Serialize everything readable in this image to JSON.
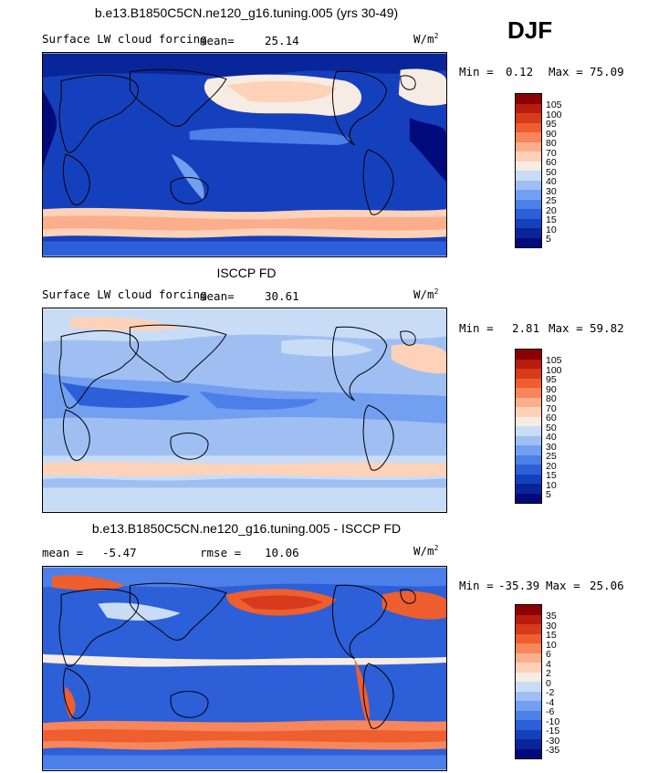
{
  "season": "DJF",
  "panels": [
    {
      "title": "b.e13.B1850C5CN.ne120_g16.tuning.005 (yrs 30-49)",
      "field": "Surface LW cloud forcing",
      "mean_label": "mean=",
      "mean": "25.14",
      "units_base": "W/m",
      "units_exp": "2",
      "min_label": "Min =",
      "min": "0.12",
      "max_label": "Max =",
      "max": "75.09",
      "levels": [
        "105",
        "100",
        "95",
        "90",
        "80",
        "70",
        "60",
        "50",
        "40",
        "30",
        "25",
        "20",
        "15",
        "10",
        "5"
      ],
      "colors": [
        "#8b0000",
        "#b71c0c",
        "#d73a1c",
        "#ee5e2e",
        "#f7865a",
        "#fbae8c",
        "#fdd2b8",
        "#f6ece4",
        "#c9dcf6",
        "#9fbff2",
        "#729ff0",
        "#4d7fe8",
        "#2c5fd8",
        "#1540bd",
        "#082699",
        "#000a7a"
      ]
    },
    {
      "title": "ISCCP FD",
      "field": "Surface LW cloud forcing",
      "mean_label": "mean=",
      "mean": "30.61",
      "units_base": "W/m",
      "units_exp": "2",
      "min_label": "Min =",
      "min": "2.81",
      "max_label": "Max =",
      "max": "59.82",
      "levels": [
        "105",
        "100",
        "95",
        "90",
        "80",
        "70",
        "60",
        "50",
        "40",
        "30",
        "25",
        "20",
        "15",
        "10",
        "5"
      ],
      "colors": [
        "#8b0000",
        "#b71c0c",
        "#d73a1c",
        "#ee5e2e",
        "#f7865a",
        "#fbae8c",
        "#fdd2b8",
        "#f6ece4",
        "#c9dcf6",
        "#9fbff2",
        "#729ff0",
        "#4d7fe8",
        "#2c5fd8",
        "#1540bd",
        "#082699",
        "#000a7a"
      ]
    },
    {
      "title": "b.e13.B1850C5CN.ne120_g16.tuning.005 - ISCCP FD",
      "mean_label": "mean =",
      "mean": "-5.47",
      "rmse_label": "rmse =",
      "rmse": "10.06",
      "units_base": "W/m",
      "units_exp": "2",
      "min_label": "Min =",
      "min": "-35.39",
      "max_label": "Max =",
      "max": "25.06",
      "levels": [
        "35",
        "30",
        "15",
        "10",
        "6",
        "4",
        "2",
        "0",
        "-2",
        "-4",
        "-6",
        "-10",
        "-15",
        "-30",
        "-35"
      ],
      "colors": [
        "#8b0000",
        "#b71c0c",
        "#d73a1c",
        "#ee5e2e",
        "#f7865a",
        "#fbae8c",
        "#fdd2b8",
        "#f6ece4",
        "#c9dcf6",
        "#9fbff2",
        "#729ff0",
        "#4d7fe8",
        "#2c5fd8",
        "#1540bd",
        "#082699",
        "#000a7a"
      ]
    }
  ]
}
